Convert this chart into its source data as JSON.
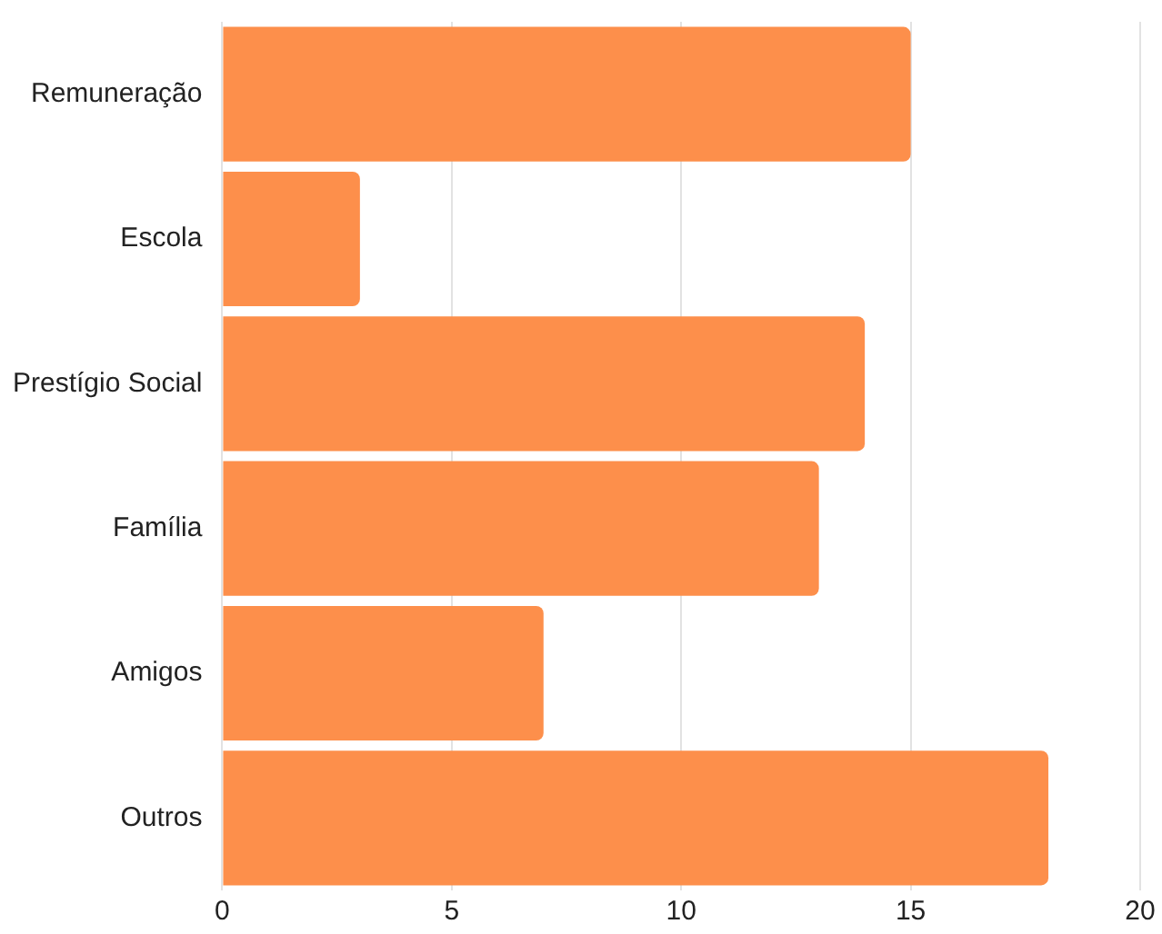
{
  "chart_data": {
    "type": "bar",
    "orientation": "horizontal",
    "categories": [
      "Remuneração",
      "Escola",
      "Prestígio Social",
      "Família",
      "Amigos",
      "Outros"
    ],
    "values": [
      15,
      3,
      14,
      13,
      7,
      18
    ],
    "color": "#fd8f4b",
    "xlim": [
      0,
      20
    ],
    "xticks": [
      0,
      5,
      10,
      15,
      20
    ],
    "grid": "x",
    "legend": false
  }
}
